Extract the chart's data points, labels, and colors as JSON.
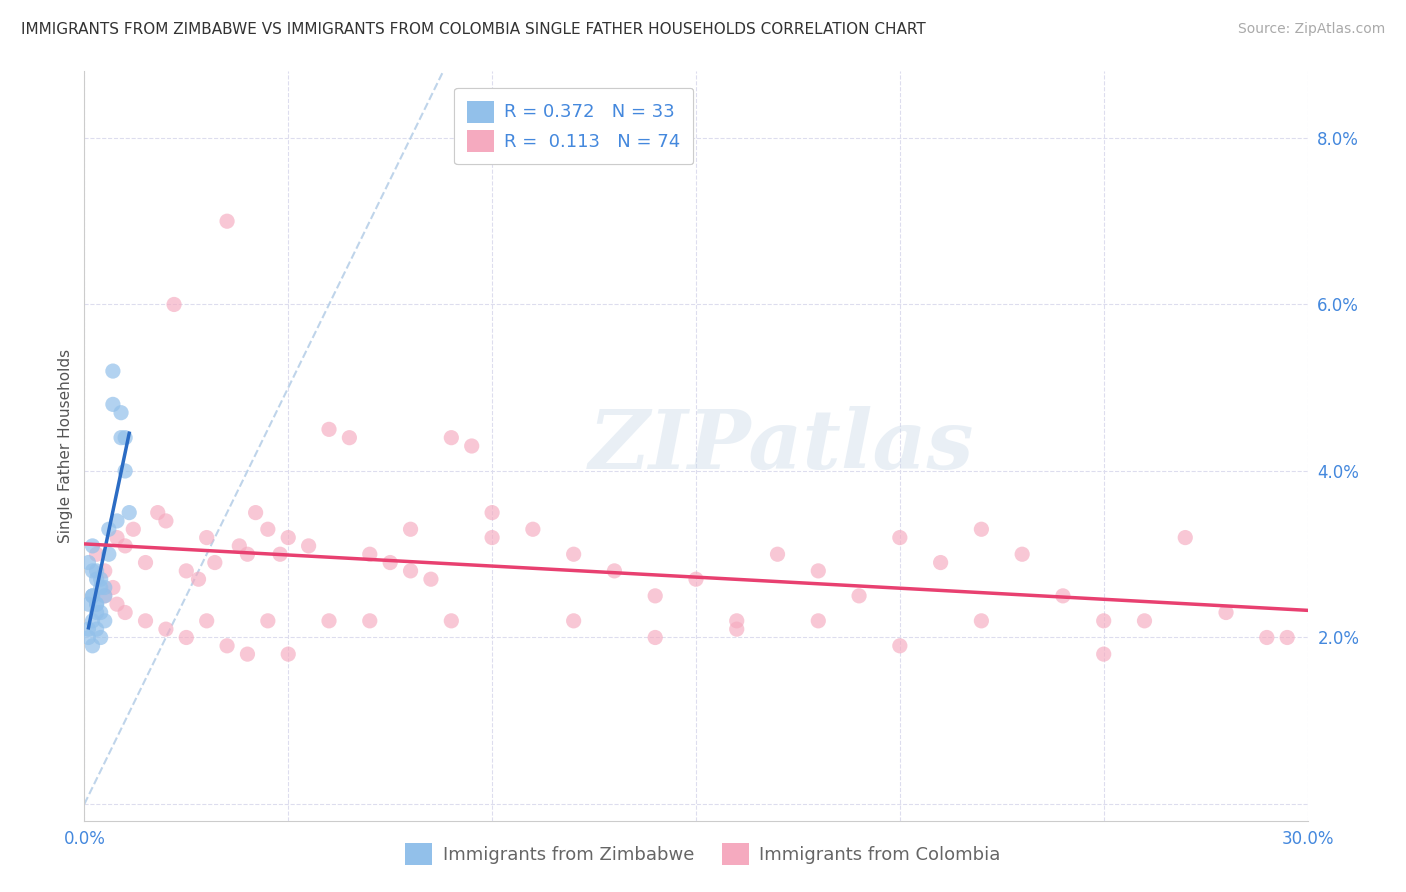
{
  "title": "IMMIGRANTS FROM ZIMBABWE VS IMMIGRANTS FROM COLOMBIA SINGLE FATHER HOUSEHOLDS CORRELATION CHART",
  "source": "Source: ZipAtlas.com",
  "ylabel": "Single Father Households",
  "xlim": [
    0.0,
    0.3
  ],
  "ylim": [
    -0.002,
    0.088
  ],
  "legend_r1": "R = 0.372   N = 33",
  "legend_r2": "R =  0.113   N = 74",
  "legend_label1": "Immigrants from Zimbabwe",
  "legend_label2": "Immigrants from Colombia",
  "color_zimbabwe": "#92C0EA",
  "color_colombia": "#F5AABF",
  "color_trendline_zimbabwe": "#2B6CC4",
  "color_trendline_colombia": "#E84070",
  "color_diagonal": "#B8D0E8",
  "watermark": "ZIPatlas",
  "background_color": "#FFFFFF",
  "yticks": [
    0.0,
    0.02,
    0.04,
    0.06,
    0.08
  ],
  "yticklabels": [
    "",
    "2.0%",
    "4.0%",
    "6.0%",
    "8.0%"
  ],
  "xticks": [
    0.0,
    0.05,
    0.1,
    0.15,
    0.2,
    0.25,
    0.3
  ],
  "xticklabels": [
    "0.0%",
    "",
    "",
    "",
    "",
    "",
    "30.0%"
  ],
  "tick_color": "#4488DD",
  "title_fontsize": 11,
  "source_fontsize": 10,
  "axis_label_fontsize": 11,
  "tick_fontsize": 12,
  "legend_fontsize": 13,
  "watermark_fontsize": 60,
  "zimbabwe_x": [
    0.002,
    0.003,
    0.004,
    0.005,
    0.006,
    0.007,
    0.008,
    0.009,
    0.01,
    0.011,
    0.002,
    0.003,
    0.004,
    0.005,
    0.001,
    0.002,
    0.003,
    0.004,
    0.005,
    0.006,
    0.001,
    0.002,
    0.003,
    0.003,
    0.002,
    0.001,
    0.001,
    0.002,
    0.003,
    0.004,
    0.007,
    0.009,
    0.01
  ],
  "zimbabwe_y": [
    0.031,
    0.028,
    0.027,
    0.026,
    0.03,
    0.048,
    0.034,
    0.044,
    0.04,
    0.035,
    0.025,
    0.024,
    0.023,
    0.022,
    0.029,
    0.028,
    0.027,
    0.026,
    0.025,
    0.033,
    0.024,
    0.025,
    0.023,
    0.024,
    0.022,
    0.021,
    0.02,
    0.019,
    0.021,
    0.02,
    0.052,
    0.047,
    0.044
  ],
  "colombia_x": [
    0.003,
    0.005,
    0.007,
    0.008,
    0.01,
    0.012,
    0.015,
    0.018,
    0.02,
    0.022,
    0.025,
    0.028,
    0.03,
    0.032,
    0.035,
    0.038,
    0.04,
    0.042,
    0.045,
    0.048,
    0.05,
    0.055,
    0.06,
    0.065,
    0.07,
    0.075,
    0.08,
    0.085,
    0.09,
    0.095,
    0.1,
    0.11,
    0.12,
    0.13,
    0.14,
    0.15,
    0.16,
    0.17,
    0.18,
    0.19,
    0.2,
    0.21,
    0.22,
    0.23,
    0.24,
    0.25,
    0.26,
    0.27,
    0.28,
    0.29,
    0.005,
    0.008,
    0.01,
    0.015,
    0.02,
    0.025,
    0.03,
    0.035,
    0.04,
    0.045,
    0.05,
    0.06,
    0.07,
    0.08,
    0.09,
    0.1,
    0.12,
    0.14,
    0.16,
    0.18,
    0.2,
    0.22,
    0.25,
    0.295
  ],
  "colombia_y": [
    0.03,
    0.028,
    0.026,
    0.032,
    0.031,
    0.033,
    0.029,
    0.035,
    0.034,
    0.06,
    0.028,
    0.027,
    0.032,
    0.029,
    0.07,
    0.031,
    0.03,
    0.035,
    0.033,
    0.03,
    0.032,
    0.031,
    0.045,
    0.044,
    0.03,
    0.029,
    0.028,
    0.027,
    0.044,
    0.043,
    0.035,
    0.033,
    0.03,
    0.028,
    0.025,
    0.027,
    0.022,
    0.03,
    0.028,
    0.025,
    0.032,
    0.029,
    0.033,
    0.03,
    0.025,
    0.022,
    0.022,
    0.032,
    0.023,
    0.02,
    0.025,
    0.024,
    0.023,
    0.022,
    0.021,
    0.02,
    0.022,
    0.019,
    0.018,
    0.022,
    0.018,
    0.022,
    0.022,
    0.033,
    0.022,
    0.032,
    0.022,
    0.02,
    0.021,
    0.022,
    0.019,
    0.022,
    0.018,
    0.02
  ]
}
